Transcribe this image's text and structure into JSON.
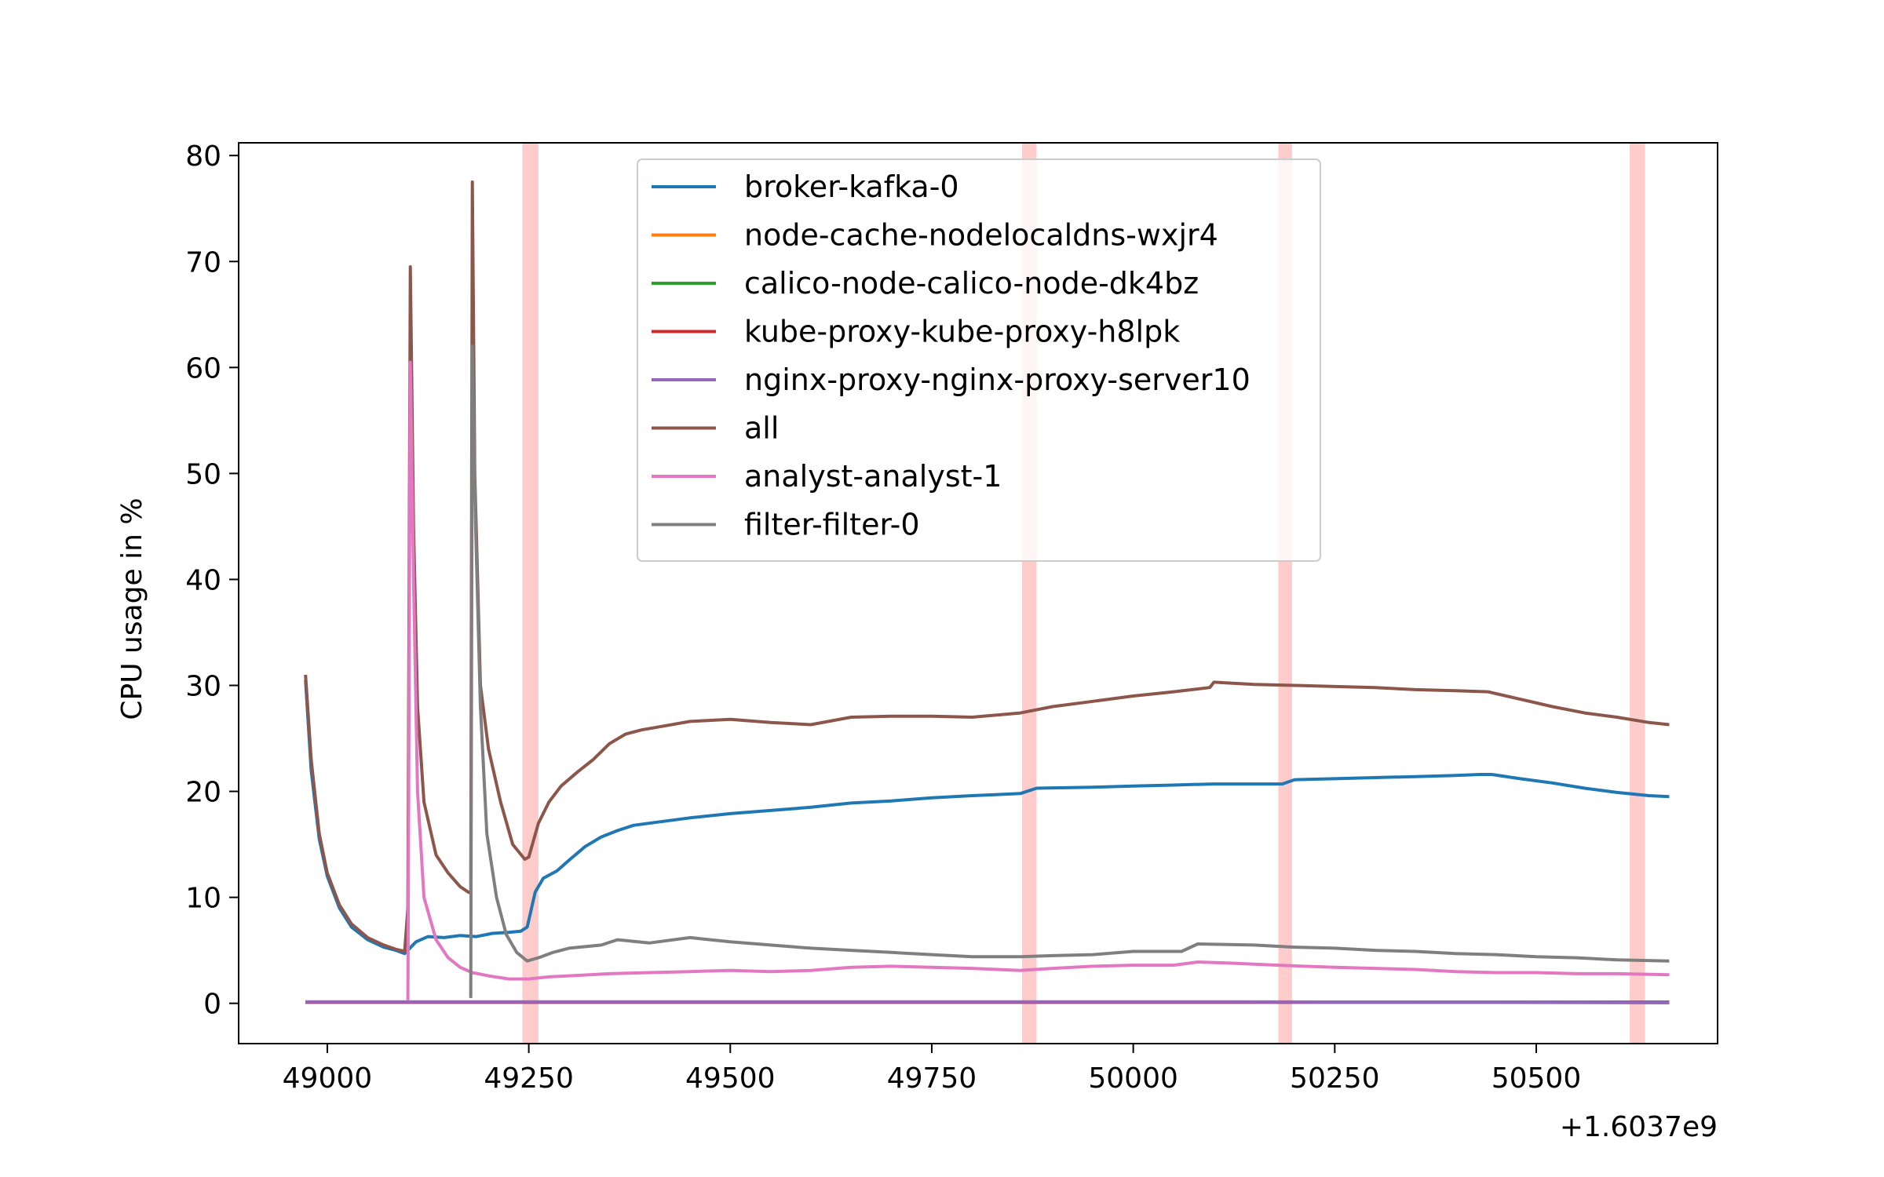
{
  "chart_data": {
    "type": "line",
    "xlabel": "",
    "ylabel": "CPU usage in %",
    "x_offset_label": "+1.6037e9",
    "xlim": [
      48890,
      50725
    ],
    "ylim": [
      -3.8,
      81.2
    ],
    "xticks": [
      49000,
      49250,
      49500,
      49750,
      50000,
      50250,
      50500
    ],
    "xtick_labels": [
      "49000",
      "49250",
      "49500",
      "49750",
      "50000",
      "50250",
      "50500"
    ],
    "yticks": [
      0,
      10,
      20,
      30,
      40,
      50,
      60,
      70,
      80
    ],
    "ytick_labels": [
      "0",
      "10",
      "20",
      "30",
      "40",
      "50",
      "60",
      "70",
      "80"
    ],
    "grid": false,
    "legend_placement": "top-center",
    "highlight_spans": [
      {
        "x0": 49242,
        "x1": 49262,
        "color": "#ffcccc"
      },
      {
        "x0": 49862,
        "x1": 49880,
        "color": "#ffcccc"
      },
      {
        "x0": 50180,
        "x1": 50197,
        "color": "#ffcccc"
      },
      {
        "x0": 50616,
        "x1": 50635,
        "color": "#ffcccc"
      }
    ],
    "series": [
      {
        "name": "broker-kafka-0",
        "color": "#1f77b4",
        "points": [
          [
            48973,
            30.5
          ],
          [
            48980,
            22
          ],
          [
            48990,
            15.5
          ],
          [
            49000,
            12
          ],
          [
            49015,
            9
          ],
          [
            49030,
            7.2
          ],
          [
            49050,
            6
          ],
          [
            49070,
            5.3
          ],
          [
            49085,
            5
          ],
          [
            49096,
            4.7
          ],
          [
            49110,
            5.8
          ],
          [
            49125,
            6.3
          ],
          [
            49145,
            6.2
          ],
          [
            49165,
            6.4
          ],
          [
            49185,
            6.3
          ],
          [
            49205,
            6.6
          ],
          [
            49225,
            6.7
          ],
          [
            49240,
            6.8
          ],
          [
            49248,
            7.2
          ],
          [
            49258,
            10.5
          ],
          [
            49268,
            11.8
          ],
          [
            49285,
            12.5
          ],
          [
            49300,
            13.5
          ],
          [
            49320,
            14.8
          ],
          [
            49340,
            15.7
          ],
          [
            49360,
            16.3
          ],
          [
            49380,
            16.8
          ],
          [
            49410,
            17.1
          ],
          [
            49450,
            17.5
          ],
          [
            49500,
            17.9
          ],
          [
            49550,
            18.2
          ],
          [
            49600,
            18.5
          ],
          [
            49650,
            18.9
          ],
          [
            49700,
            19.1
          ],
          [
            49750,
            19.4
          ],
          [
            49800,
            19.6
          ],
          [
            49860,
            19.8
          ],
          [
            49880,
            20.3
          ],
          [
            49950,
            20.4
          ],
          [
            50000,
            20.5
          ],
          [
            50050,
            20.6
          ],
          [
            50100,
            20.7
          ],
          [
            50185,
            20.7
          ],
          [
            50200,
            21.1
          ],
          [
            50250,
            21.2
          ],
          [
            50300,
            21.3
          ],
          [
            50350,
            21.4
          ],
          [
            50400,
            21.5
          ],
          [
            50430,
            21.6
          ],
          [
            50445,
            21.6
          ],
          [
            50480,
            21.2
          ],
          [
            50520,
            20.8
          ],
          [
            50560,
            20.3
          ],
          [
            50600,
            19.9
          ],
          [
            50640,
            19.6
          ],
          [
            50665,
            19.5
          ]
        ]
      },
      {
        "name": "node-cache-nodelocaldns-wxjr4",
        "color": "#ff7f0e",
        "points": [
          [
            48973,
            0.1
          ],
          [
            50665,
            0.1
          ]
        ]
      },
      {
        "name": "calico-node-calico-node-dk4bz",
        "color": "#2ca02c",
        "points": [
          [
            48973,
            0.1
          ],
          [
            50665,
            0.1
          ]
        ]
      },
      {
        "name": "kube-proxy-kube-proxy-h8lpk",
        "color": "#d62728",
        "points": [
          [
            48973,
            0.1
          ],
          [
            50665,
            0.1
          ]
        ]
      },
      {
        "name": "nginx-proxy-nginx-proxy-server10",
        "color": "#9467bd",
        "points": [
          [
            48973,
            0.15
          ],
          [
            50120,
            0.15
          ],
          [
            50665,
            0.05
          ]
        ]
      },
      {
        "name": "all",
        "color": "#8c564b",
        "points": [
          [
            48973,
            31
          ],
          [
            48980,
            23
          ],
          [
            48990,
            16
          ],
          [
            49000,
            12.3
          ],
          [
            49015,
            9.3
          ],
          [
            49030,
            7.5
          ],
          [
            49050,
            6.2
          ],
          [
            49070,
            5.5
          ],
          [
            49085,
            5.1
          ],
          [
            49096,
            4.9
          ],
          [
            49100,
            9
          ],
          [
            49103,
            69.5
          ],
          [
            49107,
            45
          ],
          [
            49112,
            28
          ],
          [
            49120,
            19
          ],
          [
            49135,
            14
          ],
          [
            49150,
            12.3
          ],
          [
            49165,
            11
          ],
          [
            49175,
            10.5
          ],
          [
            49178,
            10.4
          ],
          [
            49180,
            77.5
          ],
          [
            49183,
            50
          ],
          [
            49190,
            30
          ],
          [
            49200,
            24
          ],
          [
            49215,
            19
          ],
          [
            49230,
            15
          ],
          [
            49245,
            13.6
          ],
          [
            49250,
            13.8
          ],
          [
            49262,
            17
          ],
          [
            49275,
            19
          ],
          [
            49290,
            20.5
          ],
          [
            49310,
            21.8
          ],
          [
            49330,
            23
          ],
          [
            49350,
            24.5
          ],
          [
            49370,
            25.4
          ],
          [
            49390,
            25.8
          ],
          [
            49420,
            26.2
          ],
          [
            49450,
            26.6
          ],
          [
            49500,
            26.8
          ],
          [
            49550,
            26.5
          ],
          [
            49600,
            26.3
          ],
          [
            49650,
            27
          ],
          [
            49700,
            27.1
          ],
          [
            49750,
            27.1
          ],
          [
            49800,
            27
          ],
          [
            49860,
            27.4
          ],
          [
            49900,
            28
          ],
          [
            49950,
            28.5
          ],
          [
            50000,
            29
          ],
          [
            50050,
            29.4
          ],
          [
            50095,
            29.8
          ],
          [
            50100,
            30.3
          ],
          [
            50150,
            30.1
          ],
          [
            50200,
            30
          ],
          [
            50250,
            29.9
          ],
          [
            50300,
            29.8
          ],
          [
            50350,
            29.6
          ],
          [
            50400,
            29.5
          ],
          [
            50440,
            29.4
          ],
          [
            50480,
            28.7
          ],
          [
            50520,
            28
          ],
          [
            50560,
            27.4
          ],
          [
            50600,
            27
          ],
          [
            50640,
            26.5
          ],
          [
            50665,
            26.3
          ]
        ]
      },
      {
        "name": "analyst-analyst-1",
        "color": "#e377c2",
        "points": [
          [
            49100,
            0.3
          ],
          [
            49103,
            60.5
          ],
          [
            49107,
            40
          ],
          [
            49112,
            20
          ],
          [
            49120,
            10
          ],
          [
            49135,
            6
          ],
          [
            49150,
            4.3
          ],
          [
            49165,
            3.4
          ],
          [
            49180,
            2.9
          ],
          [
            49200,
            2.6
          ],
          [
            49225,
            2.3
          ],
          [
            49250,
            2.3
          ],
          [
            49275,
            2.5
          ],
          [
            49300,
            2.6
          ],
          [
            49350,
            2.8
          ],
          [
            49400,
            2.9
          ],
          [
            49450,
            3
          ],
          [
            49500,
            3.1
          ],
          [
            49550,
            3
          ],
          [
            49600,
            3.1
          ],
          [
            49650,
            3.4
          ],
          [
            49700,
            3.5
          ],
          [
            49750,
            3.4
          ],
          [
            49800,
            3.3
          ],
          [
            49860,
            3.1
          ],
          [
            49900,
            3.3
          ],
          [
            49950,
            3.5
          ],
          [
            50000,
            3.6
          ],
          [
            50050,
            3.6
          ],
          [
            50080,
            3.9
          ],
          [
            50120,
            3.8
          ],
          [
            50180,
            3.6
          ],
          [
            50250,
            3.4
          ],
          [
            50300,
            3.3
          ],
          [
            50350,
            3.2
          ],
          [
            50400,
            3
          ],
          [
            50450,
            2.9
          ],
          [
            50500,
            2.9
          ],
          [
            50550,
            2.8
          ],
          [
            50600,
            2.8
          ],
          [
            50665,
            2.7
          ]
        ]
      },
      {
        "name": "filter-filter-0",
        "color": "#7f7f7f",
        "points": [
          [
            49178,
            0.5
          ],
          [
            49180,
            62
          ],
          [
            49184,
            45
          ],
          [
            49190,
            28
          ],
          [
            49198,
            16
          ],
          [
            49210,
            10
          ],
          [
            49222,
            6.5
          ],
          [
            49235,
            4.8
          ],
          [
            49248,
            4
          ],
          [
            49262,
            4.3
          ],
          [
            49280,
            4.8
          ],
          [
            49300,
            5.2
          ],
          [
            49340,
            5.5
          ],
          [
            49360,
            6
          ],
          [
            49400,
            5.7
          ],
          [
            49450,
            6.2
          ],
          [
            49500,
            5.8
          ],
          [
            49550,
            5.5
          ],
          [
            49600,
            5.2
          ],
          [
            49650,
            5
          ],
          [
            49700,
            4.8
          ],
          [
            49750,
            4.6
          ],
          [
            49800,
            4.4
          ],
          [
            49860,
            4.4
          ],
          [
            49900,
            4.5
          ],
          [
            49950,
            4.6
          ],
          [
            50000,
            4.9
          ],
          [
            50060,
            4.9
          ],
          [
            50080,
            5.6
          ],
          [
            50150,
            5.5
          ],
          [
            50200,
            5.3
          ],
          [
            50250,
            5.2
          ],
          [
            50300,
            5
          ],
          [
            50350,
            4.9
          ],
          [
            50400,
            4.7
          ],
          [
            50450,
            4.6
          ],
          [
            50500,
            4.4
          ],
          [
            50550,
            4.3
          ],
          [
            50600,
            4.1
          ],
          [
            50665,
            4
          ]
        ]
      }
    ]
  }
}
